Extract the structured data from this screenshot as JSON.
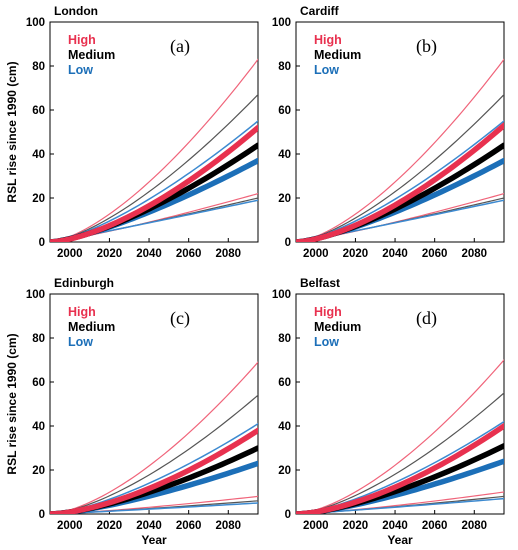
{
  "colors": {
    "high": "#e8314f",
    "medium": "#000000",
    "low": "#1c6fb8",
    "high_bound": "#f0647a",
    "medium_bound": "#555555",
    "low_bound": "#3d8ad0"
  },
  "chart_data": [
    {
      "type": "line",
      "title": "London",
      "panel_label": "(a)",
      "ylabel": "RSL rise since 1990 (cm)",
      "xlabel": "",
      "xlim": [
        1990,
        2095
      ],
      "ylim": [
        0,
        100
      ],
      "xticks": [
        "2000",
        "2020",
        "2040",
        "2060",
        "2080"
      ],
      "yticks": [
        "0",
        "20",
        "40",
        "60",
        "80",
        "100"
      ],
      "legend": [
        "High",
        "Medium",
        "Low"
      ],
      "series": [
        {
          "name": "High",
          "x": [
            1990,
            2095
          ],
          "y": [
            0,
            52
          ],
          "role": "central",
          "x_power": 1.55
        },
        {
          "name": "High",
          "x": [
            1990,
            2095
          ],
          "y": [
            0,
            83
          ],
          "role": "upper",
          "x_power": 1.5
        },
        {
          "name": "High",
          "x": [
            1990,
            2095
          ],
          "y": [
            0,
            22
          ],
          "role": "lower",
          "x_power": 1.2
        },
        {
          "name": "Medium",
          "x": [
            1990,
            2095
          ],
          "y": [
            0,
            44
          ],
          "role": "central",
          "x_power": 1.45
        },
        {
          "name": "Medium",
          "x": [
            1990,
            2095
          ],
          "y": [
            0,
            67
          ],
          "role": "upper",
          "x_power": 1.45
        },
        {
          "name": "Medium",
          "x": [
            1990,
            2095
          ],
          "y": [
            0,
            20
          ],
          "role": "lower",
          "x_power": 1.1
        },
        {
          "name": "Low",
          "x": [
            1990,
            2095
          ],
          "y": [
            0,
            37
          ],
          "role": "central",
          "x_power": 1.35
        },
        {
          "name": "Low",
          "x": [
            1990,
            2095
          ],
          "y": [
            0,
            55
          ],
          "role": "upper",
          "x_power": 1.4
        },
        {
          "name": "Low",
          "x": [
            1990,
            2095
          ],
          "y": [
            0,
            19
          ],
          "role": "lower",
          "x_power": 1.05
        }
      ]
    },
    {
      "type": "line",
      "title": "Cardiff",
      "panel_label": "(b)",
      "ylabel": "",
      "xlabel": "",
      "xlim": [
        1990,
        2095
      ],
      "ylim": [
        0,
        100
      ],
      "xticks": [
        "2000",
        "2020",
        "2040",
        "2060",
        "2080"
      ],
      "yticks": [
        "0",
        "20",
        "40",
        "60",
        "80",
        "100"
      ],
      "legend": [
        "High",
        "Medium",
        "Low"
      ],
      "series": [
        {
          "name": "High",
          "x": [
            1990,
            2095
          ],
          "y": [
            0,
            53
          ],
          "role": "central",
          "x_power": 1.55
        },
        {
          "name": "High",
          "x": [
            1990,
            2095
          ],
          "y": [
            0,
            83
          ],
          "role": "upper",
          "x_power": 1.5
        },
        {
          "name": "High",
          "x": [
            1990,
            2095
          ],
          "y": [
            0,
            22
          ],
          "role": "lower",
          "x_power": 1.2
        },
        {
          "name": "Medium",
          "x": [
            1990,
            2095
          ],
          "y": [
            0,
            44
          ],
          "role": "central",
          "x_power": 1.45
        },
        {
          "name": "Medium",
          "x": [
            1990,
            2095
          ],
          "y": [
            0,
            67
          ],
          "role": "upper",
          "x_power": 1.45
        },
        {
          "name": "Medium",
          "x": [
            1990,
            2095
          ],
          "y": [
            0,
            20
          ],
          "role": "lower",
          "x_power": 1.1
        },
        {
          "name": "Low",
          "x": [
            1990,
            2095
          ],
          "y": [
            0,
            37
          ],
          "role": "central",
          "x_power": 1.35
        },
        {
          "name": "Low",
          "x": [
            1990,
            2095
          ],
          "y": [
            0,
            55
          ],
          "role": "upper",
          "x_power": 1.4
        },
        {
          "name": "Low",
          "x": [
            1990,
            2095
          ],
          "y": [
            0,
            19
          ],
          "role": "lower",
          "x_power": 1.05
        }
      ]
    },
    {
      "type": "line",
      "title": "Edinburgh",
      "panel_label": "(c)",
      "ylabel": "RSL rise since 1990 (cm)",
      "xlabel": "Year",
      "xlim": [
        1990,
        2095
      ],
      "ylim": [
        0,
        100
      ],
      "xticks": [
        "2000",
        "2020",
        "2040",
        "2060",
        "2080"
      ],
      "yticks": [
        "0",
        "20",
        "40",
        "60",
        "80",
        "100"
      ],
      "legend": [
        "High",
        "Medium",
        "Low"
      ],
      "series": [
        {
          "name": "High",
          "x": [
            1990,
            2095
          ],
          "y": [
            0,
            38
          ],
          "role": "central",
          "x_power": 1.6
        },
        {
          "name": "High",
          "x": [
            1990,
            2095
          ],
          "y": [
            0,
            69
          ],
          "role": "upper",
          "x_power": 1.55
        },
        {
          "name": "High",
          "x": [
            1990,
            2095
          ],
          "y": [
            0,
            8
          ],
          "role": "lower",
          "x_power": 1.3
        },
        {
          "name": "Medium",
          "x": [
            1990,
            2095
          ],
          "y": [
            0,
            30
          ],
          "role": "central",
          "x_power": 1.5
        },
        {
          "name": "Medium",
          "x": [
            1990,
            2095
          ],
          "y": [
            0,
            54
          ],
          "role": "upper",
          "x_power": 1.5
        },
        {
          "name": "Medium",
          "x": [
            1990,
            2095
          ],
          "y": [
            0,
            6
          ],
          "role": "lower",
          "x_power": 1.2
        },
        {
          "name": "Low",
          "x": [
            1990,
            2095
          ],
          "y": [
            0,
            23
          ],
          "role": "central",
          "x_power": 1.4
        },
        {
          "name": "Low",
          "x": [
            1990,
            2095
          ],
          "y": [
            0,
            41
          ],
          "role": "upper",
          "x_power": 1.45
        },
        {
          "name": "Low",
          "x": [
            1990,
            2095
          ],
          "y": [
            0,
            5
          ],
          "role": "lower",
          "x_power": 1.1
        }
      ]
    },
    {
      "type": "line",
      "title": "Belfast",
      "panel_label": "(d)",
      "ylabel": "",
      "xlabel": "Year",
      "xlim": [
        1990,
        2095
      ],
      "ylim": [
        0,
        100
      ],
      "xticks": [
        "2000",
        "2020",
        "2040",
        "2060",
        "2080"
      ],
      "yticks": [
        "0",
        "20",
        "40",
        "60",
        "80",
        "100"
      ],
      "legend": [
        "High",
        "Medium",
        "Low"
      ],
      "series": [
        {
          "name": "High",
          "x": [
            1990,
            2095
          ],
          "y": [
            0,
            40
          ],
          "role": "central",
          "x_power": 1.6
        },
        {
          "name": "High",
          "x": [
            1990,
            2095
          ],
          "y": [
            0,
            70
          ],
          "role": "upper",
          "x_power": 1.55
        },
        {
          "name": "High",
          "x": [
            1990,
            2095
          ],
          "y": [
            0,
            10
          ],
          "role": "lower",
          "x_power": 1.3
        },
        {
          "name": "Medium",
          "x": [
            1990,
            2095
          ],
          "y": [
            0,
            31
          ],
          "role": "central",
          "x_power": 1.5
        },
        {
          "name": "Medium",
          "x": [
            1990,
            2095
          ],
          "y": [
            0,
            55
          ],
          "role": "upper",
          "x_power": 1.5
        },
        {
          "name": "Medium",
          "x": [
            1990,
            2095
          ],
          "y": [
            0,
            8
          ],
          "role": "lower",
          "x_power": 1.2
        },
        {
          "name": "Low",
          "x": [
            1990,
            2095
          ],
          "y": [
            0,
            24
          ],
          "role": "central",
          "x_power": 1.4
        },
        {
          "name": "Low",
          "x": [
            1990,
            2095
          ],
          "y": [
            0,
            42
          ],
          "role": "upper",
          "x_power": 1.45
        },
        {
          "name": "Low",
          "x": [
            1990,
            2095
          ],
          "y": [
            0,
            7
          ],
          "role": "lower",
          "x_power": 1.1
        }
      ]
    }
  ]
}
